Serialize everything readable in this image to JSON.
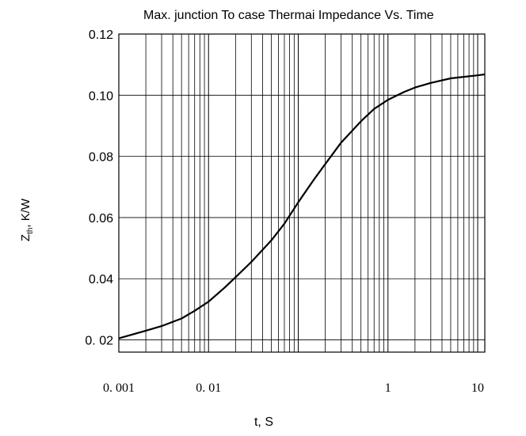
{
  "chart_data": {
    "type": "line",
    "title": "Max.  junction  To  case  Thermai  Impedance Vs. Time",
    "xlabel": "t,  S",
    "ylabel": "Z",
    "ylabel_sub": "th",
    "ylabel_unit": ", K/W",
    "x_scale": "log",
    "xlim": [
      0.001,
      12
    ],
    "ylim": [
      0.016,
      0.12
    ],
    "grid": true,
    "x_ticks": [
      {
        "value": 0.001,
        "label": "0. 001"
      },
      {
        "value": 0.01,
        "label": "0. 01"
      },
      {
        "value": 1,
        "label": "1"
      },
      {
        "value": 10,
        "label": "10"
      }
    ],
    "y_ticks": [
      {
        "value": 0.02,
        "label": "0. 02"
      },
      {
        "value": 0.04,
        "label": "0.04"
      },
      {
        "value": 0.06,
        "label": "0.06"
      },
      {
        "value": 0.08,
        "label": "0.08"
      },
      {
        "value": 0.1,
        "label": "0.10"
      },
      {
        "value": 0.12,
        "label": "0.12"
      }
    ],
    "series": [
      {
        "color": "#000000",
        "x": [
          0.001,
          0.002,
          0.003,
          0.005,
          0.007,
          0.01,
          0.015,
          0.02,
          0.03,
          0.05,
          0.07,
          0.1,
          0.15,
          0.2,
          0.3,
          0.5,
          0.7,
          1,
          1.5,
          2,
          3,
          5,
          7,
          10,
          12
        ],
        "y": [
          0.0205,
          0.023,
          0.0245,
          0.027,
          0.0295,
          0.0325,
          0.037,
          0.0405,
          0.0455,
          0.0525,
          0.058,
          0.065,
          0.0725,
          0.0775,
          0.0845,
          0.0915,
          0.0955,
          0.0985,
          0.101,
          0.1025,
          0.104,
          0.1055,
          0.106,
          0.1065,
          0.1068
        ]
      }
    ]
  }
}
